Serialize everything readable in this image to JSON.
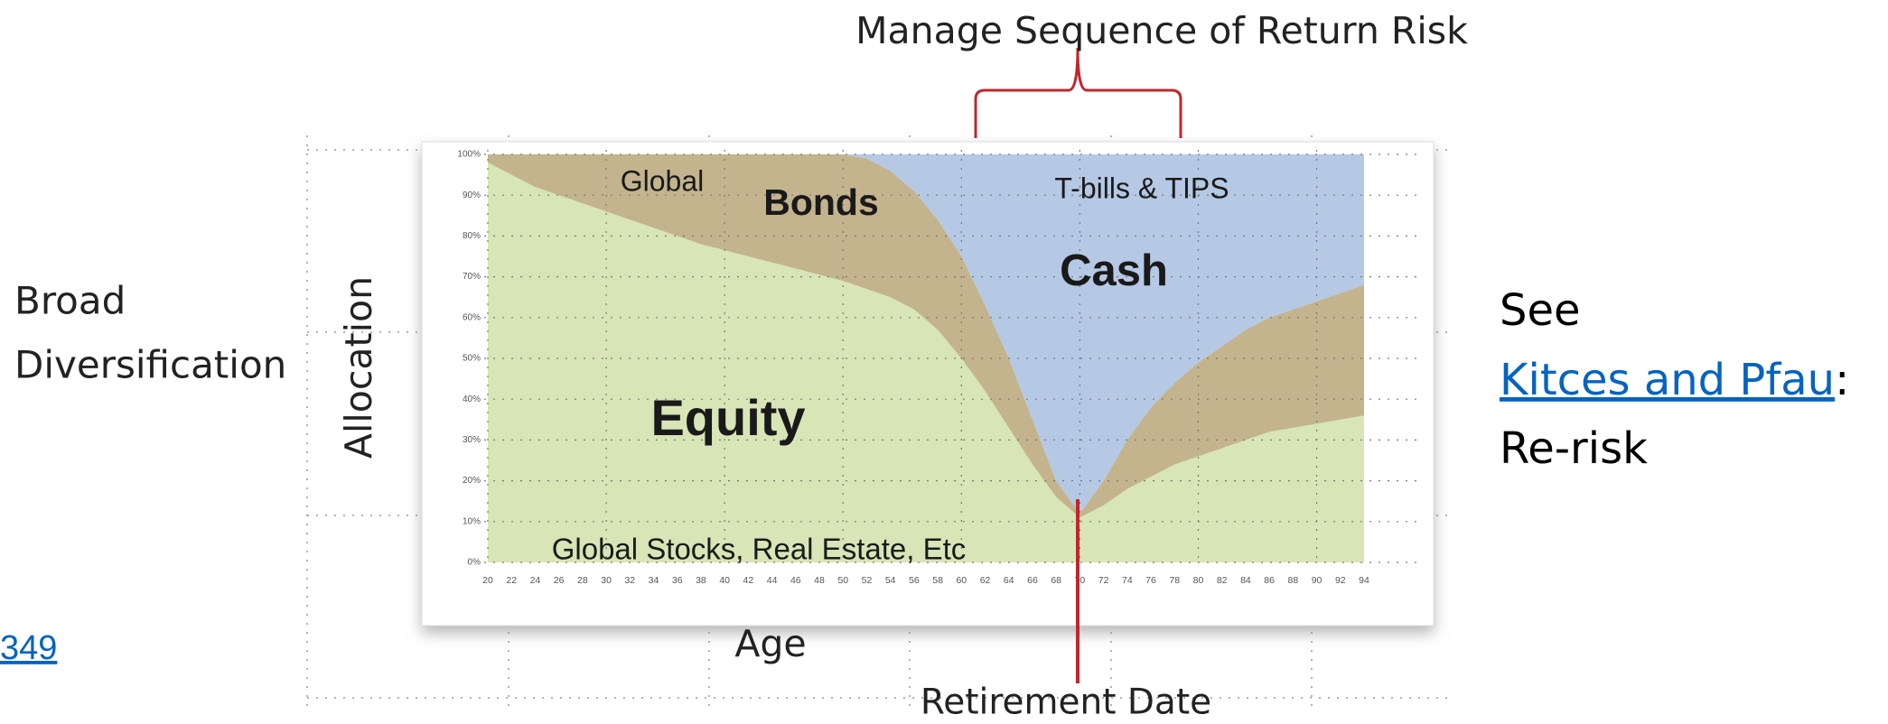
{
  "chart_data": {
    "type": "stacked-area",
    "title": "Manage Sequence of Return Risk",
    "y_label": "Allocation",
    "x_label": "Age",
    "x": [
      20,
      22,
      24,
      26,
      28,
      30,
      32,
      34,
      36,
      38,
      40,
      42,
      44,
      46,
      48,
      50,
      52,
      54,
      56,
      58,
      60,
      62,
      64,
      66,
      68,
      70,
      72,
      74,
      76,
      78,
      80,
      82,
      84,
      86,
      88,
      90,
      92,
      94
    ],
    "xlim": [
      20,
      94
    ],
    "xticks": [
      20,
      22,
      24,
      26,
      28,
      30,
      32,
      34,
      36,
      38,
      40,
      42,
      44,
      46,
      48,
      50,
      52,
      54,
      56,
      58,
      60,
      62,
      64,
      66,
      68,
      70,
      72,
      74,
      76,
      78,
      80,
      82,
      84,
      86,
      88,
      90,
      92,
      94
    ],
    "ylim": [
      0,
      100
    ],
    "yticks": [
      {
        "value": 0,
        "label": "0%"
      },
      {
        "value": 10,
        "label": "10%"
      },
      {
        "value": 20,
        "label": "20%"
      },
      {
        "value": 30,
        "label": "30%"
      },
      {
        "value": 40,
        "label": "40%"
      },
      {
        "value": 50,
        "label": "50%"
      },
      {
        "value": 60,
        "label": "60%"
      },
      {
        "value": 70,
        "label": "70%"
      },
      {
        "value": 80,
        "label": "80%"
      },
      {
        "value": 90,
        "label": "90%"
      },
      {
        "value": 100,
        "label": "100%"
      }
    ],
    "grid": true,
    "series": [
      {
        "name": "Equity",
        "color": "#d8e5b6",
        "values": [
          98,
          95,
          92,
          90,
          88,
          86,
          84,
          82,
          80,
          78,
          76.5,
          75,
          73.5,
          72,
          70.5,
          69,
          67,
          65,
          62,
          57,
          50,
          42,
          33,
          24,
          16,
          11,
          14,
          18,
          21,
          24,
          26,
          28,
          30,
          32,
          33,
          34,
          35,
          36
        ]
      },
      {
        "name": "Bonds",
        "color": "#c3b48e",
        "values": [
          2,
          5,
          8,
          10,
          12,
          14,
          16,
          18,
          20,
          22,
          23.5,
          25,
          26.5,
          28,
          29.5,
          31,
          32,
          31,
          29,
          27,
          25,
          21,
          17,
          11,
          4,
          1,
          6,
          12,
          17,
          20,
          23,
          25,
          27,
          28,
          29,
          30,
          31,
          32
        ]
      },
      {
        "name": "Cash",
        "color": "#b5c9e5",
        "values": [
          0,
          0,
          0,
          0,
          0,
          0,
          0,
          0,
          0,
          0,
          0,
          0,
          0,
          0,
          0,
          0,
          1,
          4,
          9,
          16,
          25,
          37,
          50,
          65,
          80,
          88,
          80,
          70,
          62,
          56,
          51,
          47,
          43,
          40,
          38,
          36,
          34,
          32
        ]
      }
    ],
    "annotations": [
      "Global",
      "T-bills & TIPS",
      "Global Stocks, Real Estate, Etc",
      "Retirement Date"
    ]
  },
  "slide": {
    "left": [
      "Broad",
      "Diversification"
    ],
    "right_see": "See",
    "link": "Kitces and Pfau",
    "colon": ":",
    "right_last": "Re-risk",
    "corner_link": "349"
  }
}
